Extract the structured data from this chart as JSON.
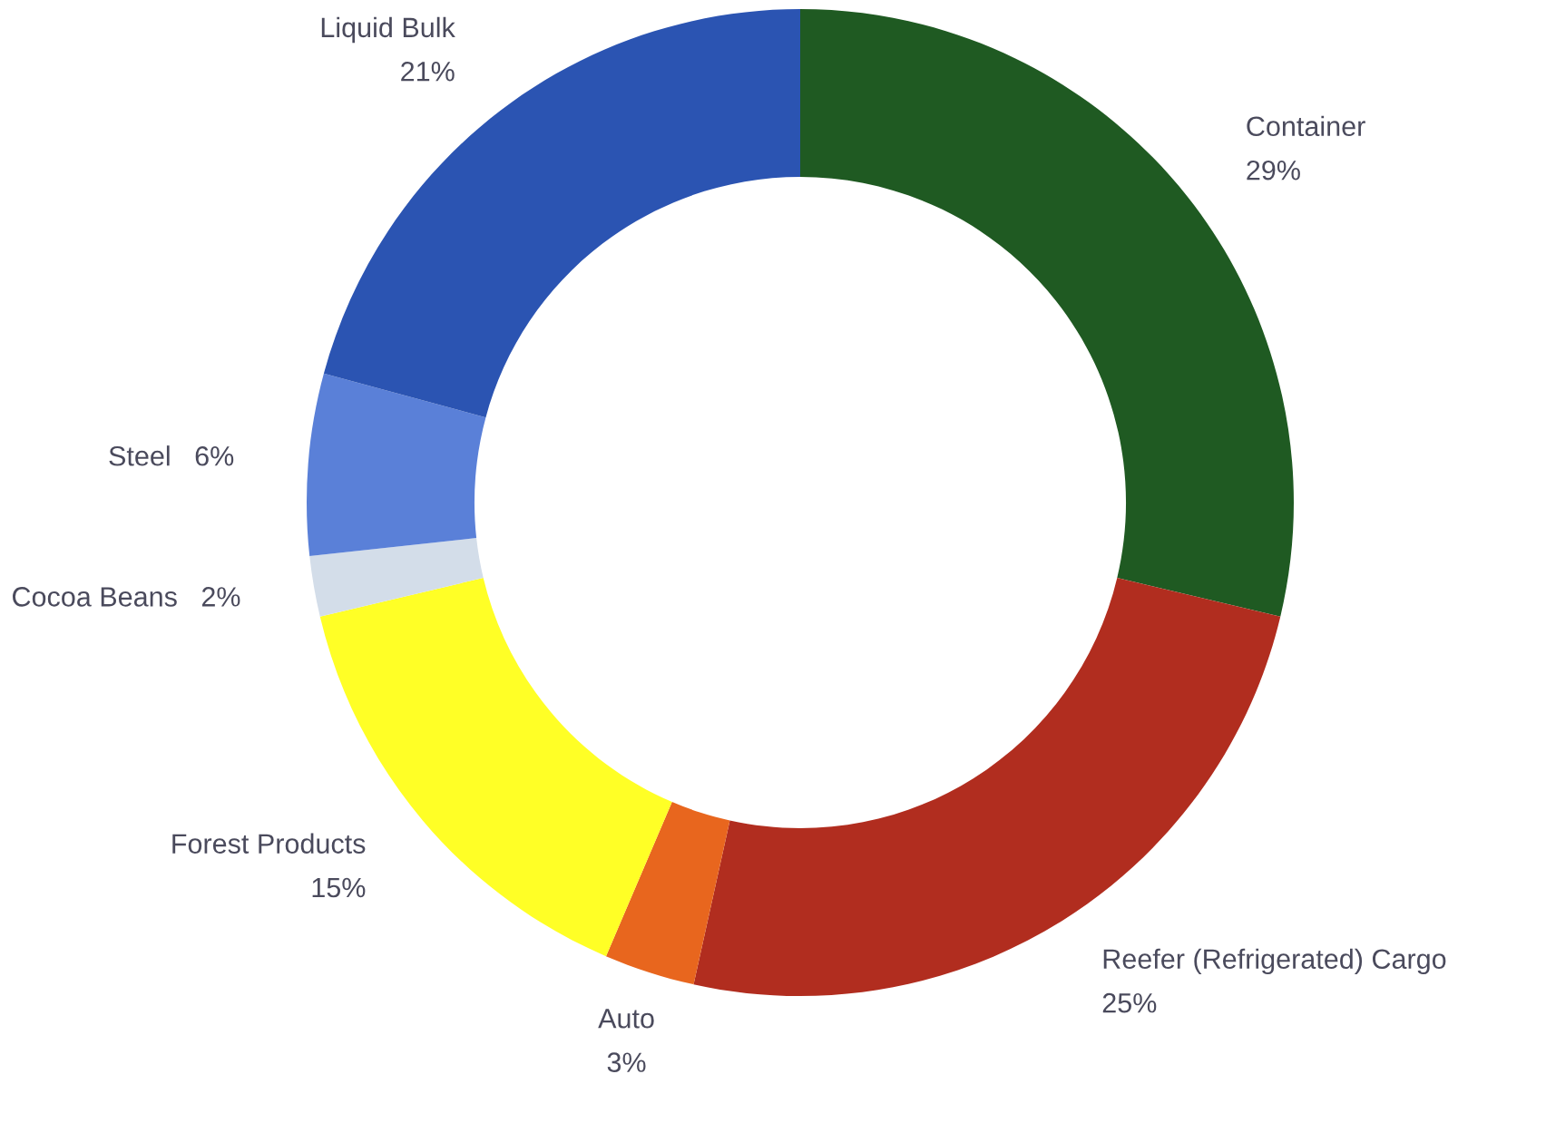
{
  "chart_data": {
    "type": "donut",
    "categories": [
      "Container",
      "Reefer (Refrigerated) Cargo",
      "Auto",
      "Forest Products",
      "Cocoa Beans",
      "Steel",
      "Liquid Bulk"
    ],
    "values": [
      29,
      25,
      3,
      15,
      2,
      6,
      21
    ],
    "value_labels": [
      "29%",
      "25%",
      "3%",
      "15%",
      "2%",
      "6%",
      "21%"
    ],
    "colors": [
      "#1f5a22",
      "#b12d1f",
      "#e8661e",
      "#ffff26",
      "#d3dde9",
      "#5a80d8",
      "#2b54b2"
    ]
  }
}
